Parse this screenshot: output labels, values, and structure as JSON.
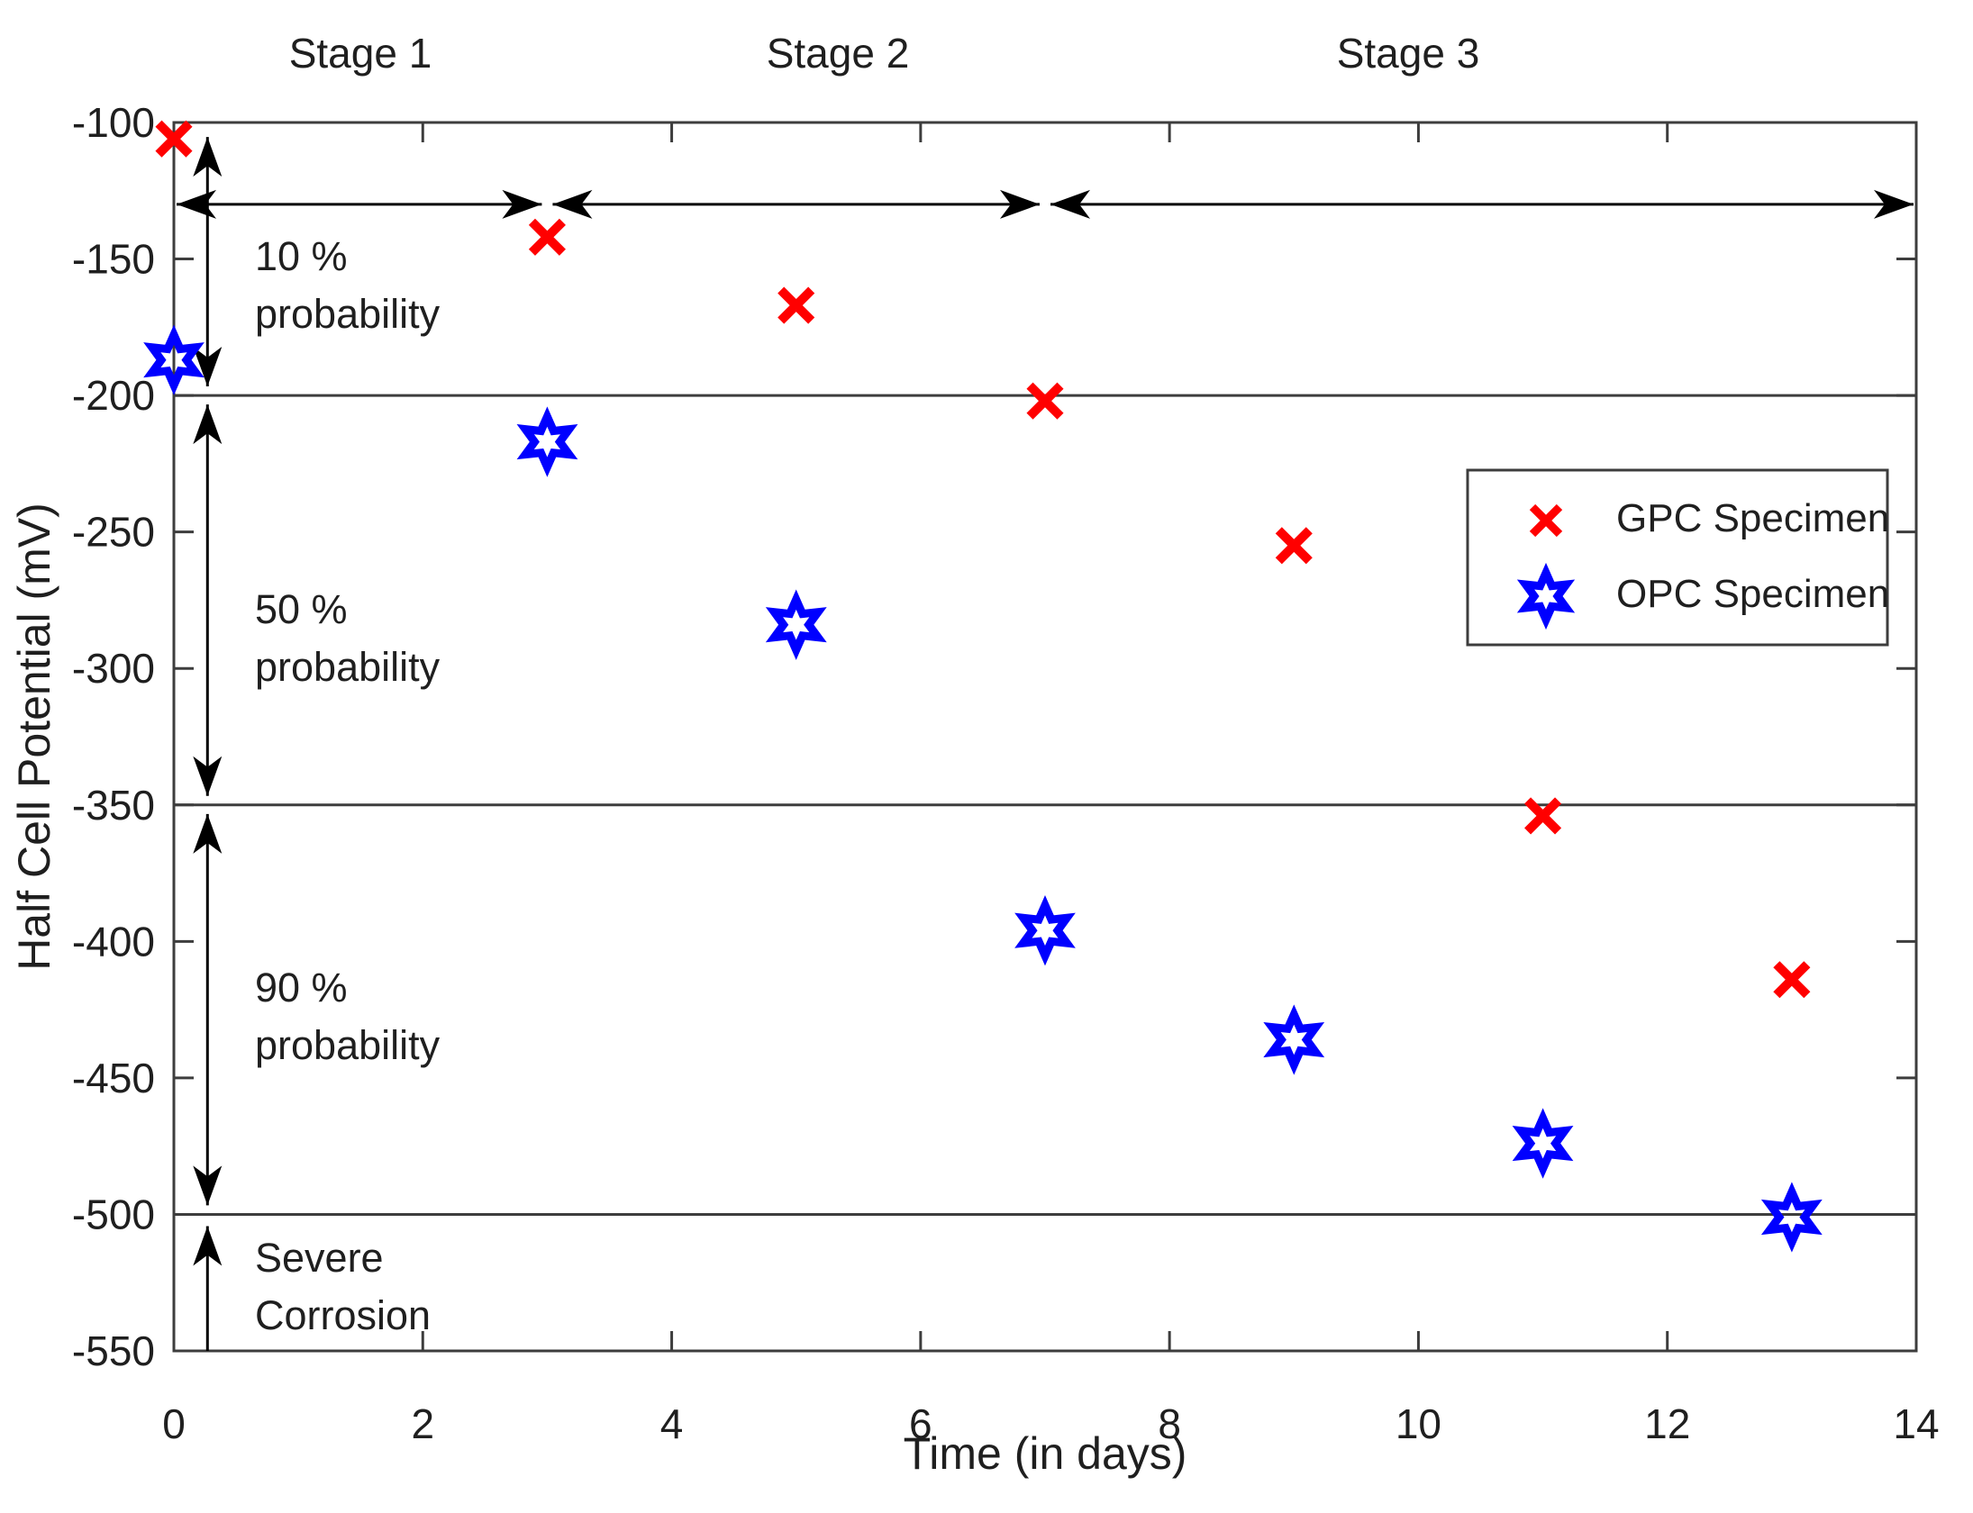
{
  "chart_data": {
    "type": "scatter",
    "title": "",
    "xlabel": "Time (in days)",
    "ylabel": "Half Cell Potential (mV)",
    "xlim": [
      0,
      14
    ],
    "ylim": [
      -550,
      -100
    ],
    "xticks": [
      0,
      2,
      4,
      6,
      8,
      10,
      12,
      14
    ],
    "yticks": [
      -100,
      -150,
      -200,
      -250,
      -300,
      -350,
      -400,
      -450,
      -500,
      -550
    ],
    "grid": false,
    "box": true,
    "axis_color": "#3d3d3d",
    "series": [
      {
        "name": "GPC Specimen",
        "marker": "x",
        "color": "#ff0000",
        "points": [
          [
            0,
            -106
          ],
          [
            3,
            -142
          ],
          [
            5,
            -167
          ],
          [
            7,
            -202
          ],
          [
            9,
            -255
          ],
          [
            11,
            -354
          ],
          [
            13,
            -414
          ]
        ]
      },
      {
        "name": "OPC Specimen",
        "marker": "hexagram",
        "color": "#0000ff",
        "points": [
          [
            0,
            -187
          ],
          [
            3,
            -217
          ],
          [
            5,
            -284
          ],
          [
            7,
            -396
          ],
          [
            9,
            -436
          ],
          [
            11,
            -474
          ],
          [
            13,
            -501
          ]
        ]
      }
    ],
    "threshold_lines": [
      -200,
      -350,
      -500
    ],
    "stages": [
      {
        "label": "Stage 1",
        "from_day": 0,
        "to_day": 3
      },
      {
        "label": "Stage 2",
        "from_day": 3,
        "to_day": 7
      },
      {
        "label": "Stage 3",
        "from_day": 7,
        "to_day": 14
      }
    ],
    "regions": [
      {
        "line1": "10 %",
        "line2": "probability",
        "from_mv": -100,
        "to_mv": -200
      },
      {
        "line1": "50 %",
        "line2": "probability",
        "from_mv": -200,
        "to_mv": -350
      },
      {
        "line1": "90 %",
        "line2": "probability",
        "from_mv": -350,
        "to_mv": -500
      },
      {
        "line1": "Severe",
        "line2": "Corrosion",
        "from_mv": -500,
        "to_mv": -550
      }
    ],
    "annotations": {
      "stage_arrow_y_mv": -130,
      "range_arrow_x_day": 0.27,
      "range_arrow_spans_mv": [
        [
          -104,
          -198
        ],
        [
          -202,
          -348
        ],
        [
          -352,
          -498
        ],
        [
          -503,
          -550
        ]
      ]
    },
    "legend": {
      "position": "upper-right-inside",
      "entries": [
        "GPC Specimen",
        "OPC Specimen"
      ]
    }
  }
}
